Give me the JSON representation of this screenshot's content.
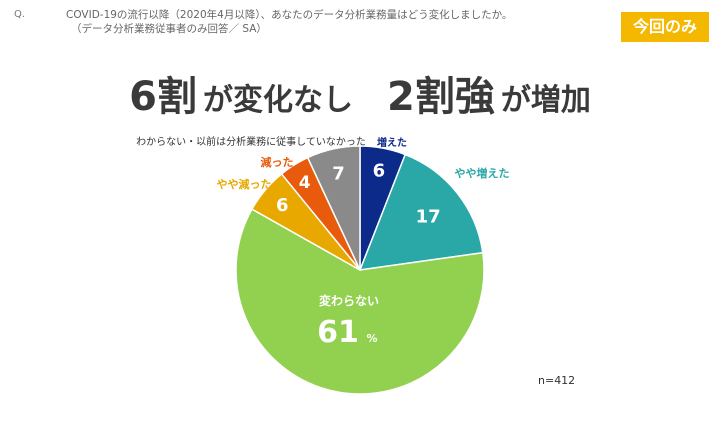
{
  "question": {
    "prefix": "Q.",
    "line1": "COVID-19の流行以降（2020年4月以降）、あなたのデータ分析業務量はどう変化しましたか。",
    "line2": "（データ分析業務従事者のみ回答／ SA）"
  },
  "badge": "今回のみ",
  "headline": {
    "part1_num": "6割",
    "part1_text": "が変化なし",
    "part2_num": "2割強",
    "part2_text": "が増加"
  },
  "n_label": "n=412",
  "chart_data": {
    "type": "pie",
    "unit": "%",
    "start_angle_deg": 0,
    "direction": "clockwise",
    "slices": [
      {
        "label": "増えた",
        "value": 6,
        "color": "#0b2a8a",
        "label_color": "#0b2a8a"
      },
      {
        "label": "やや増えた",
        "value": 17,
        "color": "#2aa8a8",
        "label_color": "#2aa8a8"
      },
      {
        "label": "変わらない",
        "value": 61,
        "color": "#92d050",
        "label_color": "#ffffff"
      },
      {
        "label": "やや減った",
        "value": 6,
        "color": "#e8a800",
        "label_color": "#e8a800"
      },
      {
        "label": "減った",
        "value": 4,
        "color": "#e85a0c",
        "label_color": "#e85a0c"
      },
      {
        "label": "わからない・以前は分析業務に従事していなかった",
        "value": 7,
        "color": "#8a8a8a",
        "label_color": "#333333"
      }
    ],
    "colors": {
      "value_text": "#ffffff"
    }
  }
}
